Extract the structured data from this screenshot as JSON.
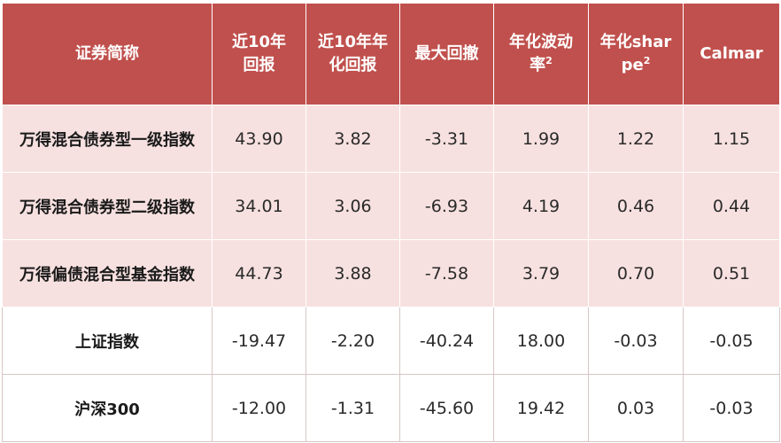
{
  "table": {
    "headers": [
      {
        "text": "证券简称",
        "sup": ""
      },
      {
        "text": "近10年回报",
        "sup": ""
      },
      {
        "text": "近10年年化回报",
        "sup": ""
      },
      {
        "text": "最大回撤",
        "sup": ""
      },
      {
        "text": "年化波动率",
        "sup": "2"
      },
      {
        "text": "年化sharpe",
        "sup": "2"
      },
      {
        "text": "Calmar",
        "sup": ""
      }
    ],
    "rows": [
      {
        "name": "万得混合债券型一级指数",
        "cells": [
          "43.90",
          "3.82",
          "-3.31",
          "1.99",
          "1.22",
          "1.15"
        ]
      },
      {
        "name": "万得混合债券型二级指数",
        "cells": [
          "34.01",
          "3.06",
          "-6.93",
          "4.19",
          "0.46",
          "0.44"
        ]
      },
      {
        "name": "万得偏债混合型基金指数",
        "cells": [
          "44.73",
          "3.88",
          "-7.58",
          "3.79",
          "0.70",
          "0.51"
        ]
      },
      {
        "name": "上证指数",
        "cells": [
          "-19.47",
          "-2.20",
          "-40.24",
          "18.00",
          "-0.03",
          "-0.05"
        ]
      },
      {
        "name": "沪深300",
        "cells": [
          "-12.00",
          "-1.31",
          "-45.60",
          "19.42",
          "0.03",
          "-0.03"
        ]
      }
    ]
  },
  "colors": {
    "header_bg": "#c0504d",
    "header_text": "#ffffff",
    "highlight_row_bg": "#f7e1e0",
    "plain_row_bg": "#ffffff"
  }
}
